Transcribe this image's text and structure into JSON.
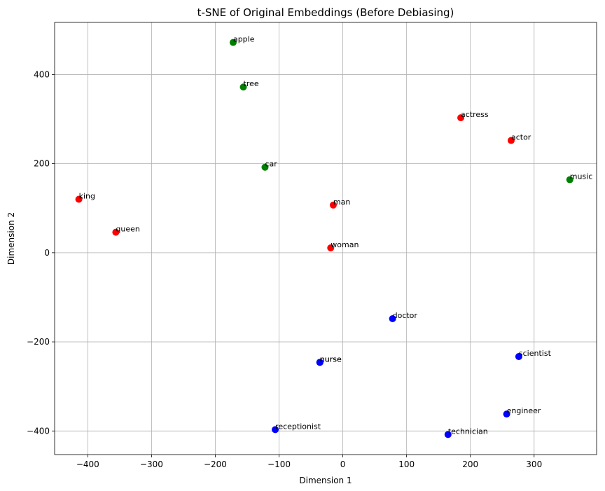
{
  "chart_data": {
    "type": "scatter",
    "title": "t-SNE of Original Embeddings (Before Debiasing)",
    "xlabel": "Dimension 1",
    "ylabel": "Dimension 2",
    "xlim": [
      -452,
      398
    ],
    "ylim": [
      -453,
      517
    ],
    "xticks": [
      -400,
      -300,
      -200,
      -100,
      0,
      100,
      200,
      300
    ],
    "yticks": [
      -400,
      -200,
      0,
      200,
      400
    ],
    "xtick_labels": [
      "−400",
      "−300",
      "−200",
      "−100",
      "0",
      "100",
      "200",
      "300"
    ],
    "ytick_labels": [
      "−400",
      "−200",
      "0",
      "200",
      "400"
    ],
    "grid": true,
    "colors": {
      "gendered": "#ff0000",
      "neutral": "#008000",
      "profession": "#0000ff"
    },
    "points": [
      {
        "label": "apple",
        "x": -172,
        "y": 472,
        "color": "#008000"
      },
      {
        "label": "tree",
        "x": -156,
        "y": 372,
        "color": "#008000"
      },
      {
        "label": "car",
        "x": -122,
        "y": 192,
        "color": "#008000"
      },
      {
        "label": "music",
        "x": 356,
        "y": 164,
        "color": "#008000"
      },
      {
        "label": "king",
        "x": -414,
        "y": 120,
        "color": "#ff0000"
      },
      {
        "label": "queen",
        "x": -356,
        "y": 46,
        "color": "#ff0000"
      },
      {
        "label": "man",
        "x": -15,
        "y": 107,
        "color": "#ff0000"
      },
      {
        "label": "woman",
        "x": -19,
        "y": 11,
        "color": "#ff0000"
      },
      {
        "label": "actress",
        "x": 185,
        "y": 303,
        "color": "#ff0000"
      },
      {
        "label": "actor",
        "x": 264,
        "y": 252,
        "color": "#ff0000"
      },
      {
        "label": "doctor",
        "x": 78,
        "y": -148,
        "color": "#0000ff"
      },
      {
        "label": "nurse",
        "x": -36,
        "y": -246,
        "color": "#0000ff"
      },
      {
        "label": "nurse",
        "x": -36,
        "y": -246,
        "color": "#0000ff"
      },
      {
        "label": "scientist",
        "x": 276,
        "y": -233,
        "color": "#0000ff"
      },
      {
        "label": "engineer",
        "x": 257,
        "y": -362,
        "color": "#0000ff"
      },
      {
        "label": "receptionist",
        "x": -106,
        "y": -397,
        "color": "#0000ff"
      },
      {
        "label": "technician",
        "x": 165,
        "y": -408,
        "color": "#0000ff"
      }
    ]
  }
}
